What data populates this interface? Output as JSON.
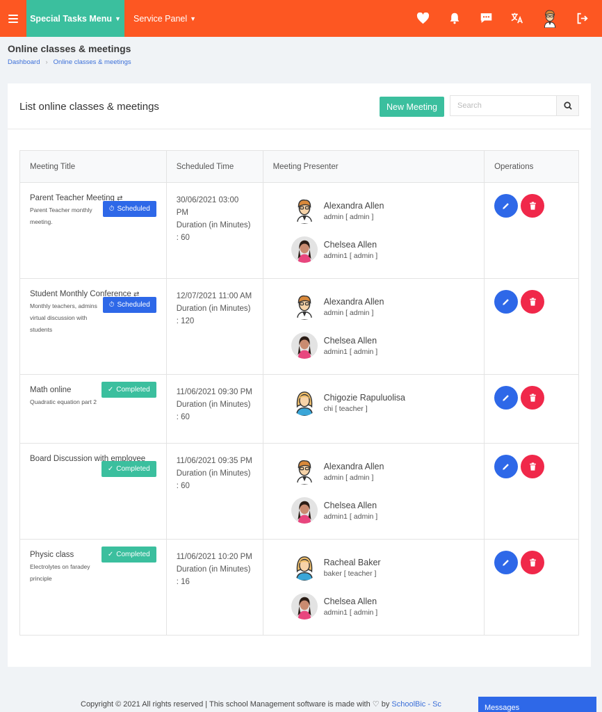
{
  "topbar": {
    "special_menu": "Special Tasks Menu",
    "service_panel": "Service Panel",
    "icons": [
      "menu-icon",
      "heart-icon",
      "bell-icon",
      "chat-icon",
      "translate-icon",
      "avatar",
      "logout-icon"
    ]
  },
  "page": {
    "title": "Online classes & meetings",
    "breadcrumb": [
      "Dashboard",
      "Online classes & meetings"
    ]
  },
  "card": {
    "title": "List online classes & meetings",
    "new_button": "New Meeting",
    "search_placeholder": "Search"
  },
  "table": {
    "headers": [
      "Meeting Title",
      "Scheduled Time",
      "Meeting Presenter",
      "Operations"
    ],
    "rows": [
      {
        "title": "Parent Teacher Meeting",
        "recurring": true,
        "desc": "Parent Teacher monthly meeting.",
        "status": "Scheduled",
        "time": "30/06/2021 03:00 PM",
        "duration": "Duration (in Minutes) : 60",
        "presenters": [
          {
            "name": "Alexandra Allen",
            "role": "admin [ admin ]"
          },
          {
            "name": "Chelsea Allen",
            "role": "admin1 [ admin ]"
          }
        ]
      },
      {
        "title": "Student Monthly Conference",
        "recurring": true,
        "desc": "Monthly teachers, admins virtual discussion with students",
        "status": "Scheduled",
        "time": "12/07/2021 11:00 AM",
        "duration": "Duration (in Minutes) : 120",
        "presenters": [
          {
            "name": "Alexandra Allen",
            "role": "admin [ admin ]"
          },
          {
            "name": "Chelsea Allen",
            "role": "admin1 [ admin ]"
          }
        ]
      },
      {
        "title": "Math online",
        "recurring": false,
        "desc": "Quadratic equation part 2",
        "status": "Completed",
        "time": "11/06/2021 09:30 PM",
        "duration": "Duration (in Minutes) : 60",
        "presenters": [
          {
            "name": "Chigozie Rapuluolisa",
            "role": "chi [ teacher ]"
          }
        ]
      },
      {
        "title": "Board Discussion with employee",
        "recurring": false,
        "desc": "",
        "status": "Completed",
        "time": "11/06/2021 09:35 PM",
        "duration": "Duration (in Minutes) : 60",
        "presenters": [
          {
            "name": "Alexandra Allen",
            "role": "admin [ admin ]"
          },
          {
            "name": "Chelsea Allen",
            "role": "admin1 [ admin ]"
          }
        ]
      },
      {
        "title": "Physic class",
        "recurring": false,
        "desc": "Electrolytes on faradey principle",
        "status": "Completed",
        "time": "11/06/2021 10:20 PM",
        "duration": "Duration (in Minutes) : 16",
        "presenters": [
          {
            "name": "Racheal Baker",
            "role": "baker [ teacher ]"
          },
          {
            "name": "Chelsea Allen",
            "role": "admin1 [ admin ]"
          }
        ]
      }
    ]
  },
  "footer": {
    "text": "Copyright © 2021 All rights reserved | This school Management software is made with ♡ by",
    "link": "SchoolBic - Sc"
  },
  "messages": "Messages",
  "colors": {
    "topbar": "#fd5722",
    "accent": "#3bbf9e",
    "primary": "#2e68e8",
    "danger": "#f0284a"
  }
}
